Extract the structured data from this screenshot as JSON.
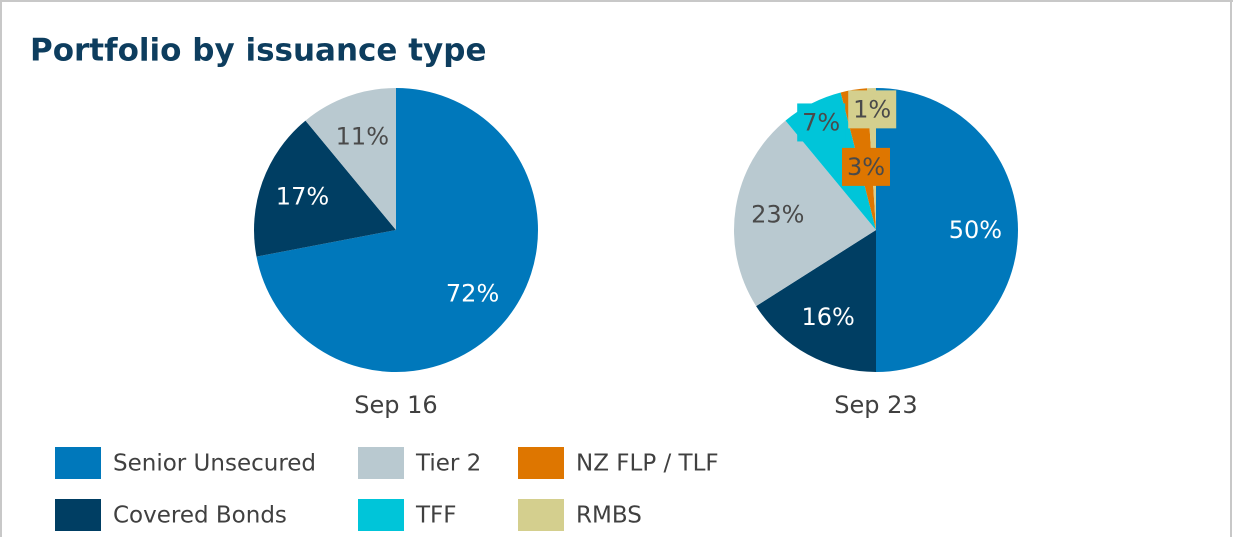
{
  "chart_data": {
    "type": "pie",
    "title": "Portfolio by issuance type",
    "categories": [
      "Senior Unsecured",
      "Covered Bonds",
      "Tier 2",
      "TFF",
      "NZ FLP / TLF",
      "RMBS"
    ],
    "colors": [
      "#0078bb",
      "#003e63",
      "#b9c9d0",
      "#00c5d9",
      "#de7600",
      "#d4cf8e"
    ],
    "series": [
      {
        "name": "Sep 16",
        "values": [
          72,
          17,
          11,
          0,
          0,
          0
        ],
        "value_labels": [
          "72%",
          "17%",
          "11%",
          null,
          null,
          null
        ]
      },
      {
        "name": "Sep 23",
        "values": [
          50,
          16,
          23,
          7,
          3,
          1
        ],
        "value_labels": [
          "50%",
          "16%",
          "23%",
          "7%",
          "3%",
          "1%"
        ]
      }
    ]
  }
}
